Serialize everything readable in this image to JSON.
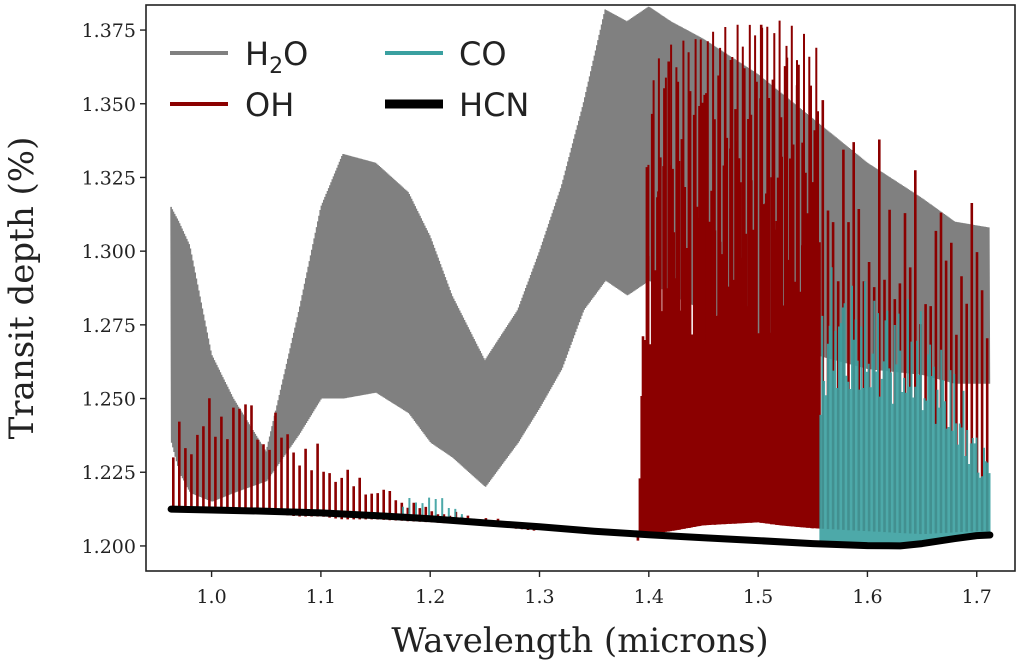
{
  "chart_data": {
    "type": "line",
    "title": "",
    "xlabel": "Wavelength (microns)",
    "ylabel": "Transit depth (%)",
    "xlim": [
      0.94,
      1.735
    ],
    "ylim": [
      1.1915,
      1.3835
    ],
    "xticks": [
      1.0,
      1.1,
      1.2,
      1.3,
      1.4,
      1.5,
      1.6,
      1.7
    ],
    "xtick_labels": [
      "1.0",
      "1.1",
      "1.2",
      "1.3",
      "1.4",
      "1.5",
      "1.6",
      "1.7"
    ],
    "yticks": [
      1.2,
      1.225,
      1.25,
      1.275,
      1.3,
      1.325,
      1.35,
      1.375
    ],
    "ytick_labels": [
      "1.200",
      "1.225",
      "1.250",
      "1.275",
      "1.300",
      "1.325",
      "1.350",
      "1.375"
    ],
    "grid": false,
    "legend_position": "top-left",
    "series": [
      {
        "name": "H2O",
        "label_main": "H",
        "label_sub": "2",
        "label_tail": "O",
        "color": "#808080",
        "x": [
          0.963,
          0.97,
          0.98,
          1.0,
          1.02,
          1.05,
          1.08,
          1.1,
          1.12,
          1.15,
          1.18,
          1.2,
          1.22,
          1.25,
          1.28,
          1.3,
          1.32,
          1.34,
          1.36,
          1.38,
          1.4,
          1.42,
          1.45,
          1.5,
          1.55,
          1.6,
          1.65,
          1.68,
          1.712
        ],
        "upper": [
          1.315,
          1.31,
          1.302,
          1.265,
          1.25,
          1.232,
          1.28,
          1.315,
          1.333,
          1.33,
          1.32,
          1.305,
          1.285,
          1.263,
          1.28,
          1.3,
          1.322,
          1.35,
          1.382,
          1.378,
          1.383,
          1.378,
          1.372,
          1.36,
          1.345,
          1.33,
          1.318,
          1.31,
          1.308
        ],
        "lower": [
          1.235,
          1.225,
          1.218,
          1.215,
          1.218,
          1.222,
          1.238,
          1.25,
          1.25,
          1.252,
          1.245,
          1.235,
          1.23,
          1.22,
          1.235,
          1.247,
          1.26,
          1.28,
          1.29,
          1.285,
          1.29,
          1.285,
          1.28,
          1.272,
          1.265,
          1.26,
          1.258,
          1.255,
          1.255
        ]
      },
      {
        "name": "OH",
        "label": "OH",
        "color": "#8b0000",
        "x": [
          0.965,
          0.98,
          1.0,
          1.02,
          1.05,
          1.08,
          1.1,
          1.12,
          1.15,
          1.2,
          1.25,
          1.3,
          1.39,
          1.4,
          1.42,
          1.45,
          1.5,
          1.52,
          1.55,
          1.6,
          1.65,
          1.7,
          1.713
        ],
        "peaks": [
          1.244,
          1.245,
          1.252,
          1.257,
          1.25,
          1.24,
          1.234,
          1.228,
          1.222,
          1.213,
          1.21,
          1.207,
          1.2,
          1.362,
          1.37,
          1.375,
          1.378,
          1.379,
          1.372,
          1.342,
          1.33,
          1.322,
          1.315
        ],
        "base": [
          1.213,
          1.213,
          1.212,
          1.212,
          1.211,
          1.21,
          1.21,
          1.209,
          1.209,
          1.208,
          1.207,
          1.205,
          1.204,
          1.204,
          1.205,
          1.207,
          1.208,
          1.207,
          1.206,
          1.205,
          1.204,
          1.205,
          1.205
        ]
      },
      {
        "name": "CO",
        "label": "CO",
        "color": "#3aa0a0",
        "x": [
          1.175,
          1.2,
          1.23,
          1.557,
          1.565,
          1.6,
          1.62,
          1.65,
          1.68,
          1.7,
          1.713
        ],
        "peaks": [
          1.216,
          1.219,
          1.212,
          1.28,
          1.298,
          1.29,
          1.288,
          1.282,
          1.262,
          1.24,
          1.232
        ],
        "base": [
          1.21,
          1.21,
          1.209,
          1.201,
          1.2,
          1.2,
          1.2,
          1.2,
          1.202,
          1.204,
          1.204
        ]
      },
      {
        "name": "HCN",
        "label": "HCN",
        "color": "#000000",
        "x": [
          0.963,
          1.0,
          1.05,
          1.1,
          1.15,
          1.2,
          1.25,
          1.3,
          1.35,
          1.4,
          1.45,
          1.5,
          1.55,
          1.6,
          1.63,
          1.65,
          1.68,
          1.7,
          1.712
        ],
        "values": [
          1.2125,
          1.2122,
          1.2118,
          1.2112,
          1.2103,
          1.2092,
          1.2078,
          1.2065,
          1.205,
          1.2038,
          1.2028,
          1.2018,
          1.2008,
          1.2001,
          1.2,
          1.2008,
          1.2025,
          1.2035,
          1.2037
        ]
      }
    ]
  }
}
